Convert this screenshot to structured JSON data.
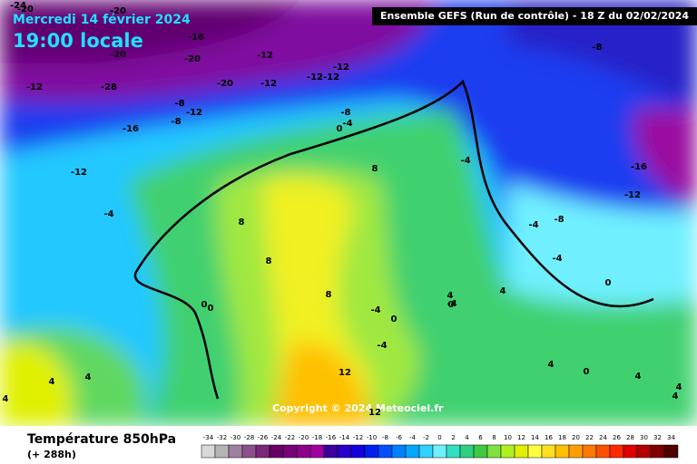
{
  "title": {
    "date": "Mercredi 14 février 2024",
    "time": "19:00 locale"
  },
  "header": "Ensemble GEFS  (Run de contrôle)  -  18 Z du 02/02/2024",
  "copyright": "Copyright © 2024 Meteociel.fr",
  "footer": {
    "variable": "Température 850hPa",
    "lead": "(+ 288h)"
  },
  "legend": {
    "values": [
      -34,
      -32,
      -30,
      -28,
      -26,
      -24,
      -22,
      -20,
      -18,
      -16,
      -14,
      -12,
      -10,
      -8,
      -6,
      -4,
      -2,
      0,
      2,
      4,
      6,
      8,
      10,
      12,
      14,
      16,
      18,
      20,
      22,
      24,
      26,
      28,
      30,
      32,
      34
    ],
    "colors": [
      "#d8d8d8",
      "#b4b4b4",
      "#a080a0",
      "#8c508c",
      "#7a287a",
      "#660066",
      "#780078",
      "#8c008c",
      "#a000a0",
      "#3c00a0",
      "#2800c8",
      "#1400dc",
      "#0020f0",
      "#0050ff",
      "#0080ff",
      "#00a8ff",
      "#30d0ff",
      "#70f0ff",
      "#30e0c0",
      "#30d080",
      "#40c840",
      "#80e040",
      "#b0f020",
      "#e0f000",
      "#ffff40",
      "#ffe020",
      "#ffc000",
      "#ffa000",
      "#ff7800",
      "#ff5000",
      "#ff2800",
      "#e00000",
      "#b40000",
      "#800000",
      "#500000"
    ]
  },
  "map": {
    "contour_labels": [
      "-24",
      "-20",
      "-20",
      "-16",
      "-20",
      "-12",
      "-20",
      "-12",
      "-28",
      "-20",
      "-12",
      "-12-12",
      "-12",
      "-8",
      "-12",
      "-16",
      "-8",
      "-4",
      "0",
      "-12",
      "-4",
      "-8",
      "8",
      "8",
      "8",
      "0",
      "0",
      "8",
      "-4",
      "0",
      "-4",
      "4",
      "4",
      "12",
      "4",
      "-4",
      "-4",
      "-8",
      "-8",
      "-16",
      "-12",
      "-4",
      "0",
      "4",
      "0",
      "4",
      "4",
      "0",
      "4",
      "4",
      "12",
      "-4",
      "4"
    ]
  }
}
